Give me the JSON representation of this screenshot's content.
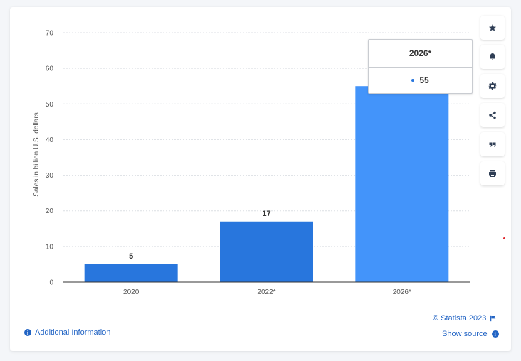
{
  "chart_data": {
    "type": "bar",
    "categories": [
      "2020",
      "2022*",
      "2026*"
    ],
    "values": [
      5,
      17,
      55
    ],
    "data_labels": [
      "5",
      "17",
      ""
    ],
    "title": "",
    "xlabel": "",
    "ylabel": "Sales in billion U.S. dollars",
    "ylim": [
      0,
      70
    ],
    "yticks": [
      "0",
      "10",
      "20",
      "30",
      "40",
      "50",
      "60",
      "70"
    ],
    "grid": true,
    "colors": [
      "#2876dd",
      "#2876dd",
      "#4394fa"
    ]
  },
  "tooltip": {
    "title": "2026*",
    "value": "55"
  },
  "toolbar": {
    "icons": [
      "star-icon",
      "bell-icon",
      "gear-icon",
      "share-icon",
      "quote-icon",
      "print-icon"
    ]
  },
  "footer": {
    "additional_info": "Additional Information",
    "copyright": "© Statista 2023",
    "show_source": "Show source"
  },
  "colors": {
    "link": "#2264c4",
    "bar": "#2876dd",
    "bar_highlight": "#4394fa"
  }
}
